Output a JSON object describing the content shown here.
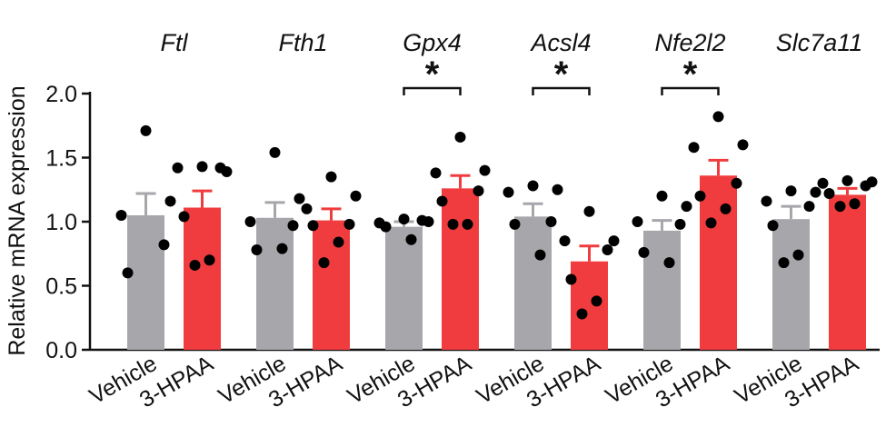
{
  "chart_data": {
    "type": "bar",
    "ylabel": "Relative mRNA expression",
    "ylim": [
      0,
      2.0
    ],
    "yticks": [
      "0.0",
      "0.5",
      "1.0",
      "1.5",
      "2.0"
    ],
    "group_labels": [
      "Vehicle",
      "3-HPAA"
    ],
    "colors": {
      "Vehicle": "#a7a6ab",
      "3-HPAA": "#f03c3e"
    },
    "genes": [
      {
        "name": "Ftl",
        "significance": "",
        "bars": [
          {
            "group": "Vehicle",
            "mean": 1.05,
            "sem": 0.17,
            "points": [
              1.71,
              1.16,
              1.05,
              0.82,
              0.6
            ]
          },
          {
            "group": "3-HPAA",
            "mean": 1.11,
            "sem": 0.13,
            "points": [
              1.43,
              1.39,
              1.42,
              1.42,
              1.04,
              0.7,
              0.66
            ]
          }
        ]
      },
      {
        "name": "Fth1",
        "significance": "",
        "bars": [
          {
            "group": "Vehicle",
            "mean": 1.03,
            "sem": 0.12,
            "points": [
              1.54,
              1.18,
              1.0,
              0.97,
              0.78,
              0.79
            ]
          },
          {
            "group": "3-HPAA",
            "mean": 1.01,
            "sem": 0.09,
            "points": [
              1.35,
              1.2,
              1.1,
              0.98,
              0.97,
              0.84,
              0.68
            ]
          }
        ]
      },
      {
        "name": "Gpx4",
        "significance": "*",
        "bars": [
          {
            "group": "Vehicle",
            "mean": 0.96,
            "sem": 0.04,
            "points": [
              1.02,
              1.0,
              0.99,
              1.01,
              0.96,
              0.86
            ]
          },
          {
            "group": "3-HPAA",
            "mean": 1.26,
            "sem": 0.1,
            "points": [
              1.66,
              1.4,
              1.38,
              1.24,
              1.16,
              0.98,
              0.98
            ]
          }
        ]
      },
      {
        "name": "Acsl4",
        "significance": "*",
        "bars": [
          {
            "group": "Vehicle",
            "mean": 1.04,
            "sem": 0.1,
            "points": [
              1.28,
              1.25,
              1.23,
              1.0,
              0.98,
              0.74
            ]
          },
          {
            "group": "3-HPAA",
            "mean": 0.69,
            "sem": 0.12,
            "points": [
              1.08,
              0.85,
              0.85,
              0.78,
              0.55,
              0.38,
              0.28
            ]
          }
        ]
      },
      {
        "name": "Nfe2l2",
        "significance": "*",
        "bars": [
          {
            "group": "Vehicle",
            "mean": 0.93,
            "sem": 0.08,
            "points": [
              1.2,
              1.12,
              1.0,
              0.98,
              0.76,
              0.68
            ]
          },
          {
            "group": "3-HPAA",
            "mean": 1.36,
            "sem": 0.12,
            "points": [
              1.82,
              1.6,
              1.58,
              1.3,
              1.2,
              1.1,
              0.99
            ]
          }
        ]
      },
      {
        "name": "Slc7a11",
        "significance": "",
        "bars": [
          {
            "group": "Vehicle",
            "mean": 1.02,
            "sem": 0.1,
            "points": [
              1.24,
              1.23,
              1.16,
              1.12,
              0.97,
              0.74,
              0.68
            ]
          },
          {
            "group": "3-HPAA",
            "mean": 1.21,
            "sem": 0.05,
            "points": [
              1.32,
              1.31,
              1.3,
              1.28,
              1.22,
              1.14,
              1.12
            ]
          }
        ]
      }
    ]
  }
}
